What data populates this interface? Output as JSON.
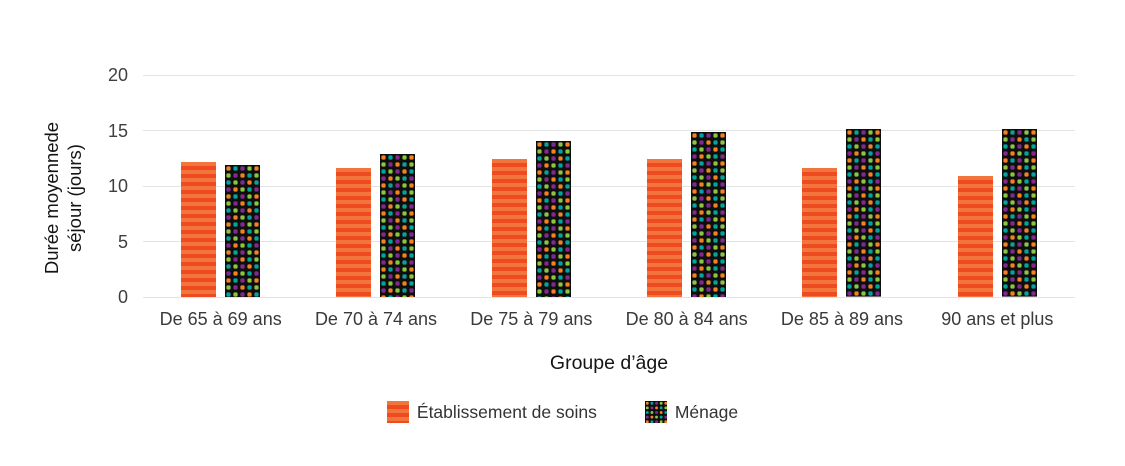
{
  "chart": {
    "y_axis": {
      "title_lines": [
        "Durée moyennede",
        "séjour (jours)"
      ],
      "ticks": [
        20,
        15,
        10,
        5,
        0
      ]
    },
    "x_axis": {
      "title": "Groupe d’âge"
    },
    "legend": {
      "items": [
        "Établissement de soins",
        "Ménage"
      ]
    }
  },
  "chart_data": {
    "type": "bar",
    "categories": [
      "De 65 à 69 ans",
      "De 70 à 74 ans",
      "De 75 à 79 ans",
      "De 80 à 84 ans",
      "De 85 à 89 ans",
      "90 ans et plus"
    ],
    "series": [
      {
        "name": "Établissement de soins",
        "values": [
          12.2,
          11.6,
          12.4,
          12.4,
          11.6,
          10.9
        ],
        "style": "orange-stripes"
      },
      {
        "name": "Ménage",
        "values": [
          11.9,
          12.9,
          14.1,
          14.9,
          15.1,
          15.1
        ],
        "style": "black-multicolor-dots"
      }
    ],
    "title": "",
    "xlabel": "Groupe d’âge",
    "ylabel": "Durée moyennede séjour (jours)",
    "ylim": [
      0,
      20
    ],
    "grid": true,
    "legend_position": "bottom"
  },
  "colors": {
    "stripe_light": "#f3753c",
    "stripe_dark": "#ee4b22",
    "dot_background": "#0e0e0e",
    "dot_orange": "#f58220",
    "dot_green": "#8cc63f",
    "dot_teal": "#00a69c",
    "dot_purple": "#812990",
    "gridline": "#e3e3e3"
  }
}
